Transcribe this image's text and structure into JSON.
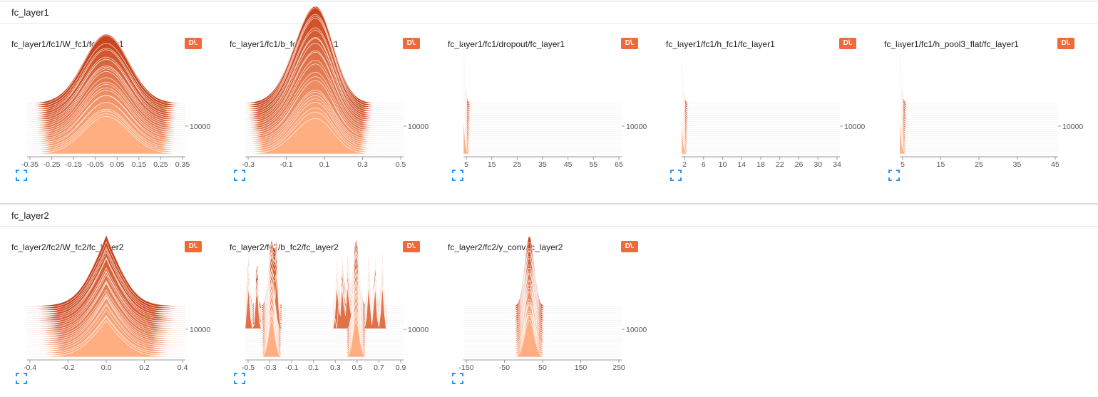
{
  "colors": {
    "badge": "#ef6a3b",
    "dark": "#c7421a",
    "light": "#ffae82",
    "gridline": "#d9d9d9",
    "expand_icon": "#2196f3"
  },
  "sections": [
    {
      "title": "fc_layer1",
      "cards": [
        {
          "title": "fc_layer1/fc1/W_fc1/fc_layer1",
          "badge": "D\\.",
          "y_label": "10000",
          "x_ticks": [
            "-0.35",
            "-0.25",
            "-0.15",
            "-0.05",
            "0.05",
            "0.15",
            "0.25",
            "0.35"
          ],
          "chart_data": {
            "type": "area",
            "title": "fc_layer1/fc1/W_fc1/fc_layer1",
            "shape": "gaussian",
            "x_range": [
              -0.35,
              0.35
            ],
            "center": 0.0,
            "spread": 0.1,
            "y_tick": "10000"
          }
        },
        {
          "title": "fc_layer1/fc1/b_fc1/fc_layer1",
          "badge": "D\\.",
          "y_label": "10000",
          "x_ticks": [
            "-0.3",
            "-0.1",
            "0.1",
            "0.3",
            "0.5"
          ],
          "chart_data": {
            "type": "area",
            "title": "fc_layer1/fc1/b_fc1/fc_layer1",
            "shape": "gaussian-skewed",
            "x_range": [
              -0.4,
              0.5
            ],
            "center": 0.0,
            "spread": 0.1,
            "y_tick": "10000"
          }
        },
        {
          "title": "fc_layer1/fc1/dropout/fc_layer1",
          "badge": "D\\.",
          "y_label": "10000",
          "x_ticks": [
            "5",
            "15",
            "25",
            "35",
            "45",
            "55",
            "65"
          ],
          "chart_data": {
            "type": "area",
            "title": "fc_layer1/fc1/dropout/fc_layer1",
            "shape": "spike-at-zero",
            "x_range": [
              0,
              65
            ],
            "center": 0,
            "spread": 1,
            "y_tick": "10000"
          }
        },
        {
          "title": "fc_layer1/fc1/h_fc1/fc_layer1",
          "badge": "D\\.",
          "y_label": "10000",
          "x_ticks": [
            "2",
            "6",
            "10",
            "14",
            "18",
            "22",
            "26",
            "30",
            "34"
          ],
          "chart_data": {
            "type": "area",
            "title": "fc_layer1/fc1/h_fc1/fc_layer1",
            "shape": "spike-at-zero",
            "x_range": [
              0,
              35
            ],
            "center": 0,
            "spread": 0.5,
            "y_tick": "10000"
          }
        },
        {
          "title": "fc_layer1/fc1/h_pool3_flat/fc_layer1",
          "badge": "D\\.",
          "y_label": "10000",
          "x_ticks": [
            "5",
            "15",
            "25",
            "35",
            "45"
          ],
          "chart_data": {
            "type": "area",
            "title": "fc_layer1/fc1/h_pool3_flat/fc_layer1",
            "shape": "spike-at-zero",
            "x_range": [
              0,
              46
            ],
            "center": 0,
            "spread": 0.7,
            "y_tick": "10000"
          }
        }
      ]
    },
    {
      "title": "fc_layer2",
      "cards": [
        {
          "title": "fc_layer2/fc2/W_fc2/fc_layer2",
          "badge": "D\\.",
          "y_label": "10000",
          "x_ticks": [
            "-0.4",
            "-0.2",
            "0.0",
            "0.2",
            "0.4"
          ],
          "chart_data": {
            "type": "area",
            "title": "fc_layer2/fc2/W_fc2/fc_layer2",
            "shape": "gaussian-peaked",
            "x_range": [
              -0.5,
              0.5
            ],
            "center": 0.0,
            "spread": 0.11,
            "y_tick": "10000"
          }
        },
        {
          "title": "fc_layer2/fc2/b_fc2/fc_layer2",
          "badge": "D\\.",
          "y_label": "10000",
          "x_ticks": [
            "-0.5",
            "-0.3",
            "-0.1",
            "0.1",
            "0.3",
            "0.5",
            "0.7",
            "0.9"
          ],
          "chart_data": {
            "type": "area",
            "title": "fc_layer2/fc2/b_fc2/fc_layer2",
            "shape": "bimodal-spikes",
            "x_range": [
              -0.55,
              0.95
            ],
            "centers": [
              -0.3,
              0.5
            ],
            "spread": 0.03,
            "y_tick": "10000"
          }
        },
        {
          "title": "fc_layer2/fc2/y_conv/fc_layer2",
          "badge": "D\\.",
          "y_label": "10000",
          "x_ticks": [
            "-150",
            "-50",
            "50",
            "150",
            "250"
          ],
          "chart_data": {
            "type": "area",
            "title": "fc_layer2/fc2/y_conv/fc_layer2",
            "shape": "narrow-peak",
            "x_range": [
              -200,
              280
            ],
            "center": 0,
            "spread": 14,
            "y_tick": "10000"
          }
        }
      ]
    }
  ]
}
